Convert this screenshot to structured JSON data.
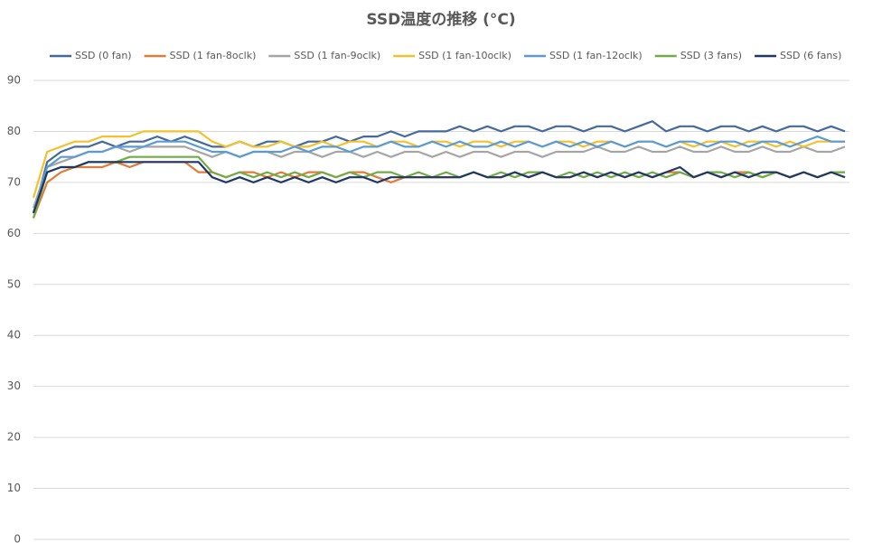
{
  "chart_data": {
    "type": "line",
    "title": "SSD温度の推移 (°C)",
    "ylim": [
      0,
      90
    ],
    "yticks": [
      0,
      10,
      20,
      30,
      40,
      50,
      60,
      70,
      80,
      90
    ],
    "grid": true,
    "series": [
      {
        "name": "SSD (0 fan)",
        "color": "#44699c",
        "values": [
          64,
          74,
          76,
          77,
          77,
          78,
          77,
          78,
          78,
          79,
          78,
          79,
          78,
          77,
          77,
          78,
          77,
          78,
          78,
          77,
          78,
          78,
          79,
          78,
          79,
          79,
          80,
          79,
          80,
          80,
          80,
          81,
          80,
          81,
          80,
          81,
          81,
          80,
          81,
          81,
          80,
          81,
          81,
          80,
          81,
          82,
          80,
          81,
          81,
          80,
          81,
          81,
          80,
          81,
          80,
          81,
          81,
          80,
          81,
          80
        ]
      },
      {
        "name": "SSD (1 fan-8oclk)",
        "color": "#e07b39",
        "values": [
          63,
          70,
          72,
          73,
          73,
          73,
          74,
          73,
          74,
          74,
          74,
          74,
          72,
          72,
          71,
          72,
          72,
          71,
          72,
          71,
          72,
          72,
          71,
          72,
          72,
          71,
          70,
          71,
          71,
          71,
          71,
          71,
          72,
          71,
          71,
          72,
          71,
          72,
          71,
          71,
          72,
          71,
          72,
          71,
          72,
          71,
          72,
          72,
          71,
          72,
          71,
          72,
          72,
          71,
          72,
          71,
          72,
          71,
          72,
          72
        ]
      },
      {
        "name": "SSD (1 fan-9oclk)",
        "color": "#a5a5a5",
        "values": [
          65,
          73,
          74,
          75,
          76,
          76,
          77,
          76,
          77,
          77,
          77,
          77,
          76,
          75,
          76,
          75,
          76,
          76,
          75,
          76,
          76,
          75,
          76,
          76,
          75,
          76,
          75,
          76,
          76,
          75,
          76,
          75,
          76,
          76,
          75,
          76,
          76,
          75,
          76,
          76,
          76,
          77,
          76,
          76,
          77,
          76,
          76,
          77,
          76,
          76,
          77,
          76,
          76,
          77,
          76,
          76,
          77,
          76,
          76,
          77
        ]
      },
      {
        "name": "SSD (1 fan-10oclk)",
        "color": "#f2c12e",
        "values": [
          67,
          76,
          77,
          78,
          78,
          79,
          79,
          79,
          80,
          80,
          80,
          80,
          80,
          78,
          77,
          78,
          77,
          77,
          78,
          77,
          77,
          78,
          77,
          78,
          78,
          77,
          78,
          78,
          77,
          78,
          78,
          77,
          78,
          78,
          77,
          78,
          78,
          77,
          78,
          78,
          77,
          78,
          78,
          77,
          78,
          78,
          77,
          78,
          77,
          78,
          78,
          77,
          78,
          78,
          77,
          78,
          77,
          78,
          78,
          78
        ]
      },
      {
        "name": "SSD (1 fan-12oclk)",
        "color": "#5b9bd5",
        "values": [
          64,
          73,
          75,
          75,
          76,
          76,
          77,
          77,
          77,
          78,
          78,
          78,
          77,
          76,
          76,
          75,
          76,
          76,
          76,
          77,
          76,
          77,
          77,
          76,
          77,
          77,
          78,
          77,
          77,
          78,
          77,
          78,
          77,
          77,
          78,
          77,
          78,
          77,
          78,
          77,
          78,
          77,
          78,
          77,
          78,
          78,
          77,
          78,
          78,
          77,
          78,
          78,
          77,
          78,
          78,
          77,
          78,
          79,
          78,
          78
        ]
      },
      {
        "name": "SSD (3 fans)",
        "color": "#70ad47",
        "values": [
          63,
          72,
          73,
          73,
          74,
          74,
          74,
          75,
          75,
          75,
          75,
          75,
          75,
          72,
          71,
          72,
          71,
          72,
          71,
          72,
          71,
          72,
          71,
          72,
          71,
          72,
          72,
          71,
          72,
          71,
          72,
          71,
          72,
          71,
          72,
          71,
          72,
          72,
          71,
          72,
          71,
          72,
          71,
          72,
          71,
          72,
          71,
          72,
          71,
          72,
          72,
          71,
          72,
          71,
          72,
          71,
          72,
          71,
          72,
          72
        ]
      },
      {
        "name": "SSD (6 fans)",
        "color": "#1f3864",
        "values": [
          64,
          72,
          73,
          73,
          74,
          74,
          74,
          74,
          74,
          74,
          74,
          74,
          74,
          71,
          70,
          71,
          70,
          71,
          70,
          71,
          70,
          71,
          70,
          71,
          71,
          70,
          71,
          71,
          71,
          71,
          71,
          71,
          72,
          71,
          71,
          72,
          71,
          72,
          71,
          71,
          72,
          71,
          72,
          71,
          72,
          71,
          72,
          73,
          71,
          72,
          71,
          72,
          71,
          72,
          72,
          71,
          72,
          71,
          72,
          71
        ]
      }
    ]
  }
}
